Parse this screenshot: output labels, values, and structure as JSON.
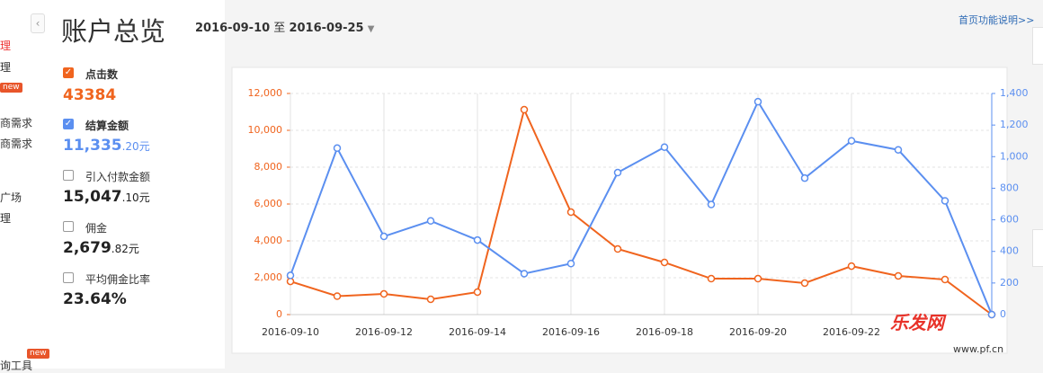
{
  "sidebar": {
    "items": [
      "理",
      "理",
      "商需求",
      "商需求",
      "广场",
      "理",
      "询工具"
    ],
    "badges": [
      "new",
      "new"
    ]
  },
  "header": {
    "title": "账户总览",
    "date_start": "2016-09-10",
    "date_sep": "至",
    "date_end": "2016-09-25",
    "help_link": "首页功能说明>>"
  },
  "metrics": [
    {
      "label": "点击数",
      "value": "43384"
    },
    {
      "label": "结算金额",
      "value": "11,335",
      "decimal": ".20元"
    },
    {
      "label": "引入付款金额",
      "value": "15,047",
      "decimal": ".10元"
    },
    {
      "label": "佣金",
      "value": "2,679",
      "decimal": ".82元"
    },
    {
      "label": "平均佣金比率",
      "value": "23.64%"
    }
  ],
  "watermark": {
    "brand": "乐发网",
    "url": "www.pf.cn"
  },
  "chart_data": {
    "type": "line",
    "categories": [
      "2016-09-10",
      null,
      "2016-09-12",
      null,
      "2016-09-14",
      null,
      "2016-09-16",
      null,
      "2016-09-18",
      null,
      "2016-09-20",
      null,
      "2016-09-22",
      null,
      null,
      null
    ],
    "series": [
      {
        "color": "#f0641e",
        "values": [
          1800,
          1000,
          1120,
          830,
          1220,
          11120,
          5560,
          3560,
          2830,
          1950,
          1950,
          1710,
          2630,
          2100,
          1900,
          0
        ]
      },
      {
        "color": "#5b8ff0",
        "axis": "y2",
        "values": [
          248,
          1054,
          495,
          593,
          472,
          259,
          323,
          899,
          1060,
          697,
          1348,
          864,
          1100,
          1043,
          720,
          0
        ]
      }
    ],
    "ylim": [
      0,
      12000
    ],
    "yticks": [
      0,
      {
        "value": 2000,
        "label": "2,000"
      },
      {
        "value": 4000,
        "label": "4,000"
      },
      {
        "value": 6000,
        "label": "6,000"
      },
      {
        "value": 8000,
        "label": "8,000"
      },
      {
        "value": 10000,
        "label": "10,000"
      },
      {
        "value": 12000,
        "label": "12,000"
      }
    ],
    "y2lim": [
      0,
      1400
    ],
    "y2ticks": [
      0,
      200,
      400,
      600,
      800,
      {
        "value": 1000,
        "label": "1,000"
      },
      {
        "value": 1200,
        "label": "1,200"
      },
      {
        "value": 1400,
        "label": "1,400"
      }
    ],
    "grid": true
  }
}
